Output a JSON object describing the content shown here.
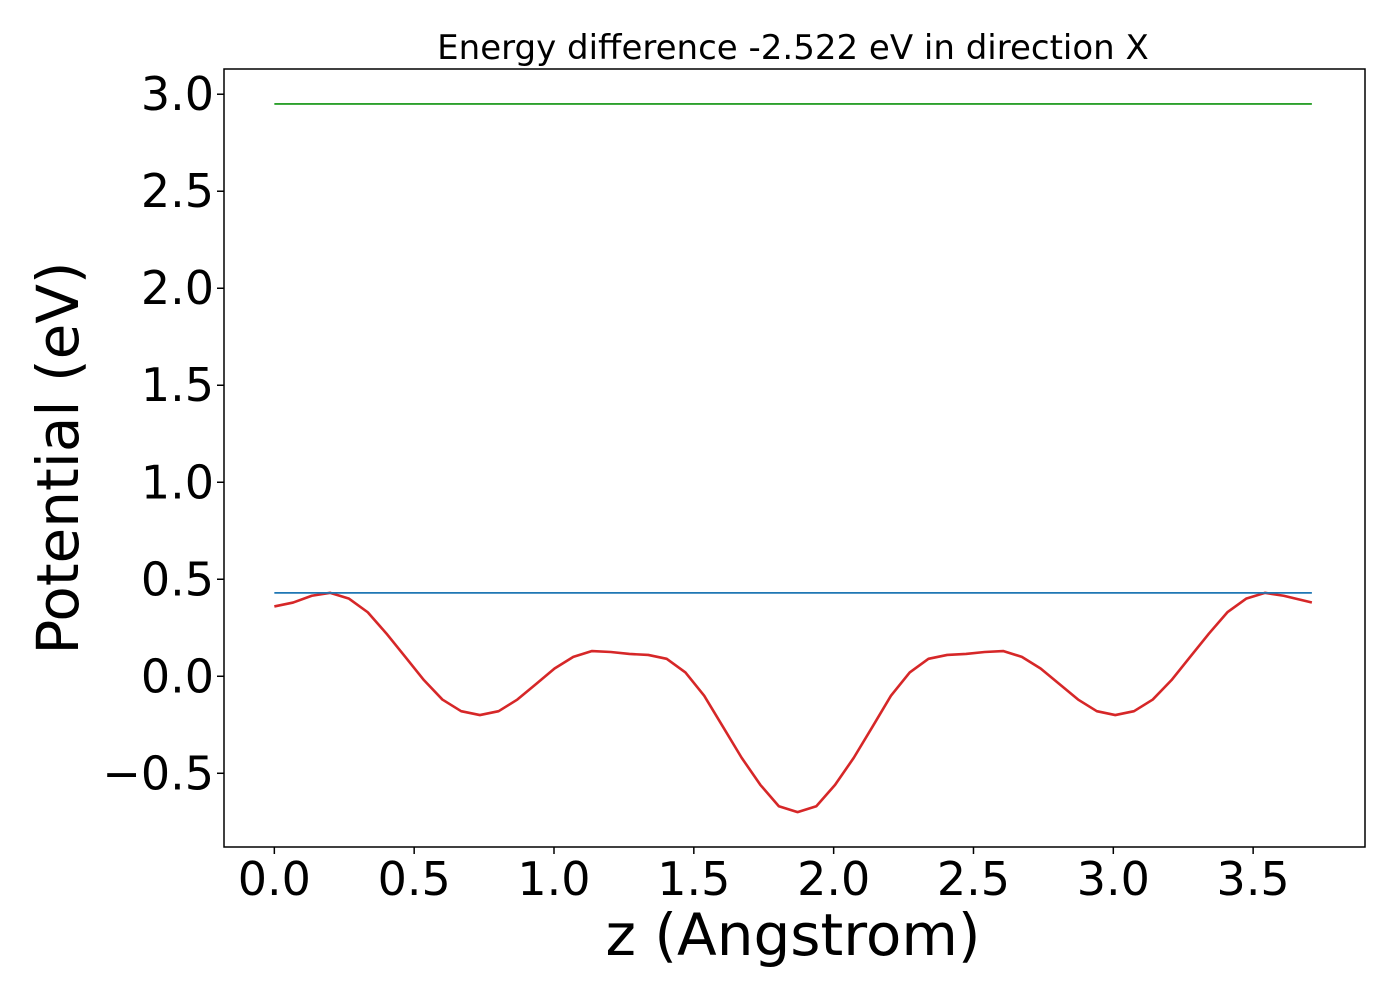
{
  "chart_data": {
    "type": "line",
    "title": "Energy difference -2.522 eV in direction X",
    "xlabel": "z (Angstrom)",
    "ylabel": "Potential (eV)",
    "xlim": [
      -0.18,
      3.9
    ],
    "ylim": [
      -0.88,
      3.13
    ],
    "grid": false,
    "x_ticks": [
      0.0,
      0.5,
      1.0,
      1.5,
      2.0,
      2.5,
      3.0,
      3.5
    ],
    "x_tick_labels": [
      "0.0",
      "0.5",
      "1.0",
      "1.5",
      "2.0",
      "2.5",
      "3.0",
      "3.5"
    ],
    "y_ticks": [
      -0.5,
      0.0,
      0.5,
      1.0,
      1.5,
      2.0,
      2.5,
      3.0
    ],
    "y_tick_labels": [
      "−0.5",
      "0.0",
      "0.5",
      "1.0",
      "1.5",
      "2.0",
      "2.5",
      "3.0"
    ],
    "series": [
      {
        "color": "#d62728",
        "x": [
          0.0,
          0.067,
          0.134,
          0.2,
          0.267,
          0.334,
          0.401,
          0.468,
          0.535,
          0.601,
          0.668,
          0.735,
          0.802,
          0.869,
          0.936,
          1.002,
          1.069,
          1.136,
          1.203,
          1.27,
          1.337,
          1.403,
          1.47,
          1.537,
          1.604,
          1.671,
          1.738,
          1.804,
          1.871,
          1.938,
          2.005,
          2.072,
          2.139,
          2.205,
          2.272,
          2.339,
          2.406,
          2.473,
          2.54,
          2.606,
          2.673,
          2.74,
          2.807,
          2.874,
          2.941,
          3.007,
          3.074,
          3.141,
          3.208,
          3.275,
          3.342,
          3.408,
          3.475,
          3.542,
          3.609,
          3.71
        ],
        "y": [
          0.36,
          0.38,
          0.415,
          0.43,
          0.4,
          0.33,
          0.22,
          0.1,
          -0.02,
          -0.12,
          -0.18,
          -0.2,
          -0.18,
          -0.12,
          -0.04,
          0.04,
          0.1,
          0.13,
          0.125,
          0.115,
          0.11,
          0.09,
          0.02,
          -0.1,
          -0.26,
          -0.42,
          -0.56,
          -0.67,
          -0.7,
          -0.67,
          -0.56,
          -0.42,
          -0.26,
          -0.1,
          0.02,
          0.09,
          0.11,
          0.115,
          0.125,
          0.13,
          0.1,
          0.04,
          -0.04,
          -0.12,
          -0.18,
          -0.2,
          -0.18,
          -0.12,
          -0.02,
          0.1,
          0.22,
          0.33,
          0.4,
          0.43,
          0.415,
          0.38
        ]
      },
      {
        "color": "#1f77b4",
        "x": [
          0.0,
          3.71
        ],
        "y": [
          0.43,
          0.43
        ]
      },
      {
        "color": "#2ca02c",
        "x": [
          0.0,
          3.71
        ],
        "y": [
          2.95,
          2.95
        ]
      }
    ]
  }
}
